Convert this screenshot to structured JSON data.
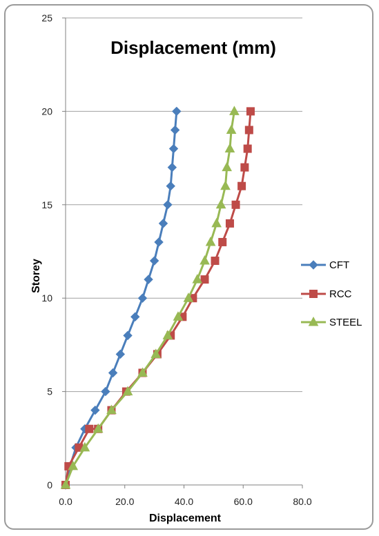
{
  "chart_data": {
    "type": "line",
    "title": "Displacement (mm)",
    "xlabel": "Displacement",
    "ylabel": "Storey",
    "xlim": [
      0,
      80
    ],
    "ylim": [
      0,
      25
    ],
    "x_ticks": [
      "0.0",
      "20.0",
      "40.0",
      "60.0",
      "80.0"
    ],
    "y_ticks": [
      "0",
      "5",
      "10",
      "15",
      "20",
      "25"
    ],
    "grid": true,
    "legend_position": "right",
    "series": [
      {
        "name": "CFT",
        "color": "#4a7ebb",
        "marker": "diamond",
        "points": [
          [
            0,
            0
          ],
          [
            1.5,
            1
          ],
          [
            3.5,
            2
          ],
          [
            6.5,
            3
          ],
          [
            10,
            4
          ],
          [
            13.5,
            5
          ],
          [
            16,
            6
          ],
          [
            18.5,
            7
          ],
          [
            21,
            8
          ],
          [
            23.5,
            9
          ],
          [
            26,
            10
          ],
          [
            28,
            11
          ],
          [
            30,
            12
          ],
          [
            31.5,
            13
          ],
          [
            33,
            14
          ],
          [
            34.5,
            15
          ],
          [
            35.5,
            16
          ],
          [
            36,
            17
          ],
          [
            36.5,
            18
          ],
          [
            37,
            19
          ],
          [
            37.5,
            20
          ]
        ]
      },
      {
        "name": "RCC",
        "color": "#be4b48",
        "marker": "square",
        "points": [
          [
            0,
            0
          ],
          [
            1,
            1
          ],
          [
            4.5,
            2
          ],
          [
            8,
            3
          ],
          [
            11,
            3
          ],
          [
            15.5,
            4
          ],
          [
            20.5,
            5
          ],
          [
            26,
            6
          ],
          [
            31,
            7
          ],
          [
            35.5,
            8
          ],
          [
            39.5,
            9
          ],
          [
            43,
            10
          ],
          [
            47,
            11
          ],
          [
            50.5,
            12
          ],
          [
            53,
            13
          ],
          [
            55.5,
            14
          ],
          [
            57.5,
            15
          ],
          [
            59.5,
            16
          ],
          [
            60.5,
            17
          ],
          [
            61.5,
            18
          ],
          [
            62,
            19
          ],
          [
            62.5,
            20
          ]
        ]
      },
      {
        "name": "STEEL",
        "color": "#98b954",
        "marker": "triangle",
        "points": [
          [
            0,
            0
          ],
          [
            2.5,
            1
          ],
          [
            6.5,
            2
          ],
          [
            11,
            3
          ],
          [
            15.5,
            4
          ],
          [
            21,
            5
          ],
          [
            26,
            6
          ],
          [
            30.5,
            7
          ],
          [
            34.5,
            8
          ],
          [
            38,
            9
          ],
          [
            41.5,
            10
          ],
          [
            44.5,
            11
          ],
          [
            47,
            12
          ],
          [
            49,
            13
          ],
          [
            51,
            14
          ],
          [
            52.5,
            15
          ],
          [
            54,
            16
          ],
          [
            54.5,
            17
          ],
          [
            55.5,
            18
          ],
          [
            56,
            19
          ],
          [
            57,
            20
          ]
        ]
      }
    ]
  }
}
